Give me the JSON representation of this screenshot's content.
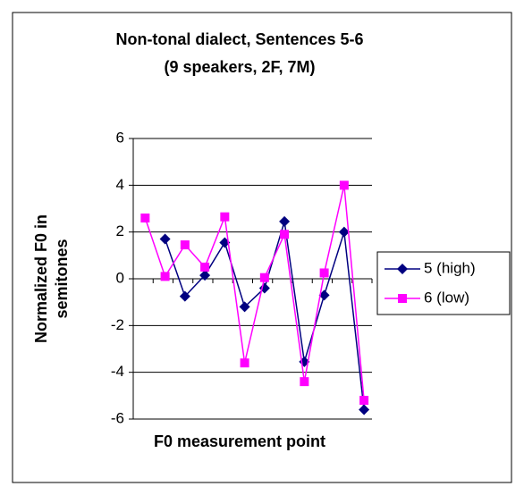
{
  "chart_data": {
    "type": "line",
    "title": "Non-tonal dialect, Sentences 5-6",
    "subtitle": "(9 speakers, 2F, 7M)",
    "ylabel": [
      "Normalized F0 in",
      "semitones"
    ],
    "xlabel": "F0 measurement point",
    "categories": [
      null,
      null,
      null,
      null,
      null,
      null,
      null,
      null,
      null,
      null,
      null,
      null
    ],
    "series": [
      {
        "name": "5 (high)",
        "color": "#000080",
        "marker": "diamond",
        "values": [
          null,
          1.7,
          -0.75,
          0.15,
          1.55,
          -1.2,
          -0.4,
          2.45,
          -3.55,
          -0.7,
          2.0,
          -5.6
        ]
      },
      {
        "name": "6 (low)",
        "color": "#ff00ff",
        "marker": "square",
        "values": [
          2.6,
          0.1,
          1.45,
          0.5,
          2.65,
          -3.6,
          0.05,
          1.9,
          -4.4,
          0.25,
          4.0,
          -5.2
        ]
      }
    ],
    "ylim": [
      -6,
      6
    ],
    "yticks": [
      -6,
      -4,
      -2,
      0,
      2,
      4,
      6
    ],
    "grid": true,
    "legend": "right"
  }
}
